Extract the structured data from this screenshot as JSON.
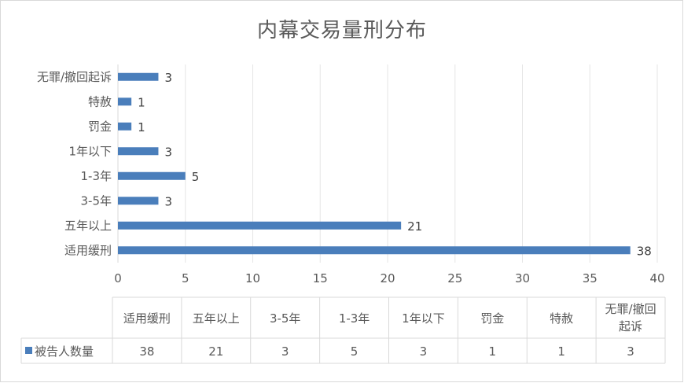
{
  "chart_data": {
    "type": "bar",
    "orientation": "horizontal",
    "title": "内幕交易量刑分布",
    "categories": [
      "适用缓刑",
      "五年以上",
      "3-5年",
      "1-3年",
      "1年以下",
      "罚金",
      "特赦",
      "无罪/撤回起诉"
    ],
    "table_headers": [
      "适用缓刑",
      "五年以上",
      "3-5年",
      "1-3年",
      "1年以下",
      "罚金",
      "特赦",
      [
        "无罪/撤回",
        "起诉"
      ]
    ],
    "series": [
      {
        "name": "被告人数量",
        "values": [
          38,
          21,
          3,
          5,
          3,
          1,
          1,
          3
        ]
      }
    ],
    "xlim": [
      0,
      40
    ],
    "xticks": [
      "0",
      "5",
      "10",
      "15",
      "20",
      "25",
      "30",
      "35",
      "40"
    ],
    "grid": true,
    "data_table": true,
    "colors": {
      "bar": "#4a7ebb",
      "grid": "#e6e6e6",
      "table_border": "#d9d9d9",
      "text": "#595959"
    }
  }
}
